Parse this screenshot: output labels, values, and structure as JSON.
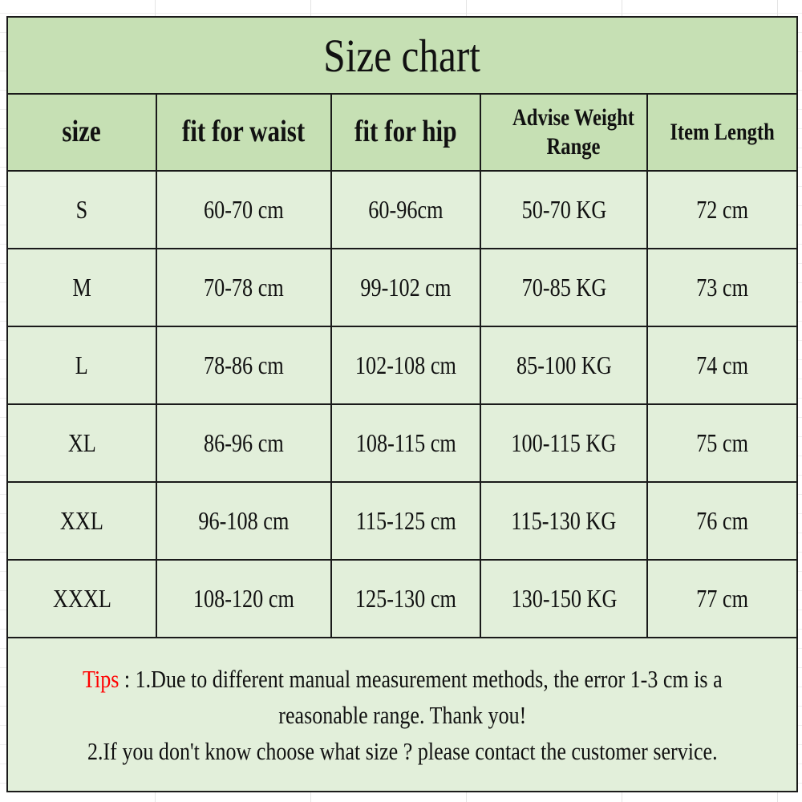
{
  "title": "Size chart",
  "columns": [
    "size",
    "fit for waist",
    "fit for hip",
    "Advise Weight Range",
    "Item Length"
  ],
  "rows": [
    [
      "S",
      "60-70 cm",
      "60-96cm",
      "50-70 KG",
      "72 cm"
    ],
    [
      "M",
      "70-78 cm",
      "99-102 cm",
      "70-85 KG",
      "73 cm"
    ],
    [
      "L",
      "78-86 cm",
      "102-108 cm",
      "85-100 KG",
      "74 cm"
    ],
    [
      "XL",
      "86-96 cm",
      "108-115 cm",
      "100-115 KG",
      "75 cm"
    ],
    [
      "XXL",
      "96-108 cm",
      "115-125 cm",
      "115-130 KG",
      "76 cm"
    ],
    [
      "XXXL",
      "108-120 cm",
      "125-130 cm",
      "130-150 KG",
      "77 cm"
    ]
  ],
  "tips": {
    "label": "Tips",
    "line1": " : 1.Due to different manual measurement methods, the error 1-3 cm is a",
    "line2": "reasonable range. Thank you!",
    "line3": "2.If you don't know choose what size ? please contact the customer service."
  },
  "colors": {
    "header_bg": "#c6e0b4",
    "cell_bg": "#e2efda",
    "tips_label": "#ff0000"
  }
}
